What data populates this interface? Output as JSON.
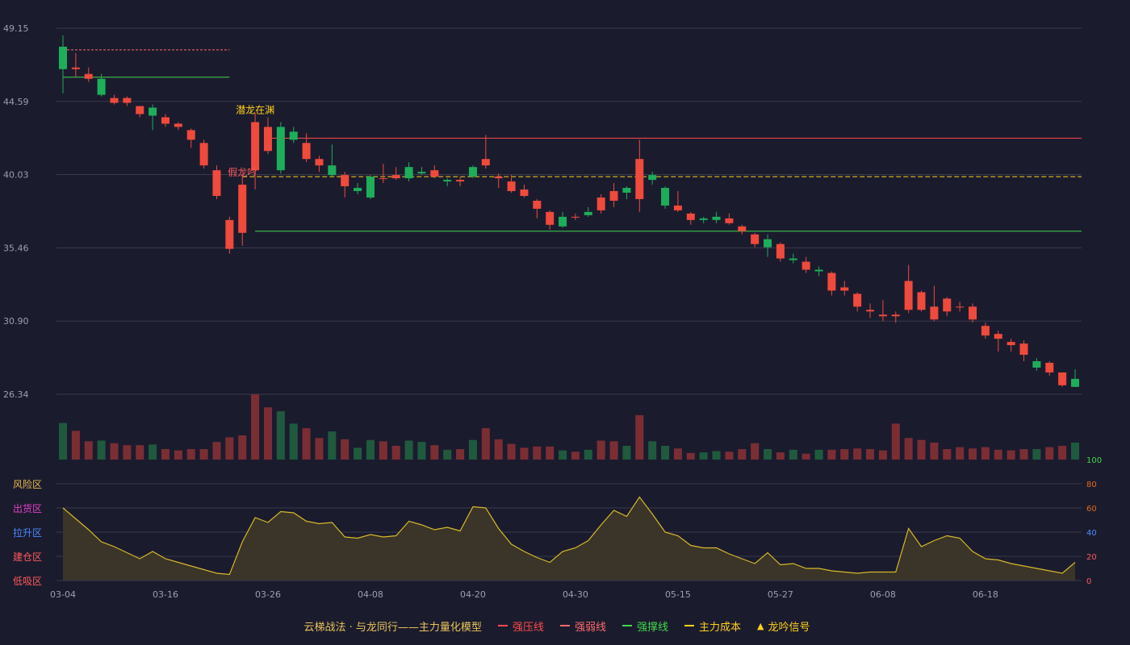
{
  "chart_data": {
    "type": "candlestick",
    "price_axis": {
      "ticks": [
        "49.15",
        "44.59",
        "40.03",
        "35.46",
        "30.90",
        "26.34"
      ],
      "min": 26.34,
      "max": 49.15
    },
    "x_ticks": [
      {
        "i": 0,
        "label": "03-04"
      },
      {
        "i": 8,
        "label": "03-16"
      },
      {
        "i": 16,
        "label": "03-26"
      },
      {
        "i": 24,
        "label": "04-08"
      },
      {
        "i": 32,
        "label": "04-20"
      },
      {
        "i": 40,
        "label": "04-30"
      },
      {
        "i": 48,
        "label": "05-15"
      },
      {
        "i": 56,
        "label": "05-27"
      },
      {
        "i": 64,
        "label": "06-08"
      },
      {
        "i": 72,
        "label": "06-18"
      }
    ],
    "candles": [
      [
        48.0,
        46.6,
        48.7,
        45.1
      ],
      [
        46.6,
        46.7,
        47.6,
        46.1
      ],
      [
        46.0,
        46.3,
        46.7,
        45.8
      ],
      [
        46.0,
        45.0,
        46.3,
        44.9
      ],
      [
        44.5,
        44.8,
        45.0,
        44.4
      ],
      [
        44.5,
        44.8,
        44.9,
        44.3
      ],
      [
        43.8,
        44.3,
        44.3,
        43.6
      ],
      [
        44.2,
        43.7,
        44.4,
        42.8
      ],
      [
        43.2,
        43.6,
        43.8,
        43.0
      ],
      [
        43.0,
        43.2,
        43.3,
        42.8
      ],
      [
        42.2,
        42.8,
        42.9,
        41.7
      ],
      [
        40.6,
        42.0,
        42.2,
        40.4
      ],
      [
        38.7,
        40.3,
        40.6,
        38.5
      ],
      [
        35.4,
        37.2,
        37.4,
        35.1
      ],
      [
        36.4,
        39.4,
        39.9,
        35.6
      ],
      [
        40.3,
        43.3,
        43.9,
        39.1
      ],
      [
        41.5,
        43.0,
        43.6,
        41.3
      ],
      [
        43.0,
        40.3,
        43.3,
        40.1
      ],
      [
        42.7,
        42.2,
        43.0,
        42.0
      ],
      [
        41.0,
        42.0,
        42.6,
        40.8
      ],
      [
        40.6,
        41.0,
        41.2,
        40.2
      ],
      [
        40.6,
        40.0,
        41.9,
        39.9
      ],
      [
        39.3,
        40.0,
        40.2,
        38.6
      ],
      [
        39.2,
        39.0,
        39.5,
        38.8
      ],
      [
        39.9,
        38.6,
        40.0,
        38.5
      ],
      [
        39.8,
        39.8,
        40.7,
        39.5
      ],
      [
        39.8,
        40.0,
        40.5,
        39.7
      ],
      [
        40.5,
        39.8,
        40.8,
        39.6
      ],
      [
        40.2,
        40.1,
        40.5,
        40.0
      ],
      [
        39.9,
        40.3,
        40.6,
        39.8
      ],
      [
        39.7,
        39.6,
        39.8,
        39.3
      ],
      [
        39.6,
        39.7,
        39.9,
        39.3
      ],
      [
        40.5,
        39.9,
        40.6,
        39.8
      ],
      [
        40.6,
        41.0,
        42.5,
        40.4
      ],
      [
        39.8,
        39.9,
        40.1,
        39.2
      ],
      [
        39.0,
        39.6,
        40.0,
        38.9
      ],
      [
        38.7,
        39.1,
        39.4,
        38.6
      ],
      [
        37.9,
        38.4,
        38.5,
        37.3
      ],
      [
        36.9,
        37.7,
        37.8,
        36.6
      ],
      [
        37.4,
        36.8,
        37.7,
        36.7
      ],
      [
        37.4,
        37.4,
        37.6,
        37.2
      ],
      [
        37.7,
        37.5,
        38.0,
        37.4
      ],
      [
        37.8,
        38.6,
        38.8,
        37.6
      ],
      [
        38.4,
        39.0,
        39.5,
        38.0
      ],
      [
        39.2,
        38.9,
        39.3,
        38.5
      ],
      [
        38.5,
        41.0,
        42.2,
        37.7
      ],
      [
        40.0,
        39.7,
        40.2,
        39.4
      ],
      [
        39.2,
        38.1,
        39.3,
        37.9
      ],
      [
        37.8,
        38.1,
        39.0,
        37.7
      ],
      [
        37.2,
        37.6,
        37.7,
        36.9
      ],
      [
        37.3,
        37.2,
        37.4,
        37.0
      ],
      [
        37.4,
        37.2,
        37.7,
        37.0
      ],
      [
        37.0,
        37.3,
        37.6,
        36.9
      ],
      [
        36.5,
        36.8,
        36.9,
        36.3
      ],
      [
        35.7,
        36.3,
        36.4,
        35.5
      ],
      [
        36.0,
        35.5,
        36.3,
        34.9
      ],
      [
        34.8,
        35.7,
        35.8,
        34.6
      ],
      [
        34.8,
        34.7,
        35.1,
        34.5
      ],
      [
        34.1,
        34.6,
        34.9,
        33.9
      ],
      [
        34.1,
        34.0,
        34.3,
        33.7
      ],
      [
        32.8,
        33.9,
        34.0,
        32.5
      ],
      [
        32.8,
        33.0,
        33.4,
        32.5
      ],
      [
        31.8,
        32.6,
        32.7,
        31.5
      ],
      [
        31.5,
        31.6,
        32.0,
        31.1
      ],
      [
        31.2,
        31.3,
        32.2,
        30.9
      ],
      [
        31.2,
        31.3,
        31.5,
        30.8
      ],
      [
        31.6,
        33.4,
        34.4,
        31.4
      ],
      [
        31.6,
        32.7,
        32.8,
        31.5
      ],
      [
        31.0,
        31.8,
        33.1,
        30.9
      ],
      [
        31.5,
        32.3,
        32.4,
        31.2
      ],
      [
        31.8,
        31.8,
        32.1,
        31.5
      ],
      [
        31.0,
        31.8,
        32.0,
        30.8
      ],
      [
        30.0,
        30.6,
        30.8,
        29.8
      ],
      [
        29.8,
        30.1,
        30.3,
        29.0
      ],
      [
        29.4,
        29.6,
        29.8,
        29.0
      ],
      [
        28.8,
        29.5,
        29.7,
        28.4
      ],
      [
        28.4,
        28.0,
        28.6,
        27.8
      ],
      [
        27.7,
        28.3,
        28.4,
        27.5
      ],
      [
        26.9,
        27.7,
        27.7,
        26.8
      ],
      [
        27.3,
        26.8,
        27.9,
        26.8
      ]
    ],
    "volumes": [
      56,
      44,
      28,
      29,
      25,
      22,
      22,
      23,
      16,
      14,
      16,
      16,
      27,
      34,
      37,
      100,
      80,
      74,
      55,
      48,
      33,
      43,
      31,
      18,
      30,
      28,
      21,
      29,
      27,
      22,
      15,
      16,
      30,
      48,
      31,
      24,
      18,
      20,
      20,
      14,
      12,
      15,
      29,
      28,
      21,
      68,
      28,
      21,
      17,
      10,
      11,
      13,
      12,
      16,
      25,
      16,
      11,
      15,
      9,
      15,
      15,
      16,
      17,
      16,
      14,
      55,
      33,
      30,
      26,
      16,
      19,
      17,
      19,
      15,
      14,
      16,
      16,
      19,
      21,
      26
    ],
    "indicator": {
      "y_ticks": [
        "100",
        "80",
        "60",
        "40",
        "20",
        "0"
      ],
      "zones": [
        "风险区",
        "出货区",
        "拉升区",
        "建仓区",
        "低吸区"
      ],
      "zone_colors": [
        "#e8b84a",
        "#e040c8",
        "#4a8cff",
        "#ff5a5a",
        "#ff5a5a"
      ],
      "values": [
        60,
        51,
        42,
        32,
        28,
        23,
        18,
        24,
        18,
        15,
        12,
        9,
        6,
        5,
        32,
        52,
        48,
        57,
        56,
        49,
        47,
        48,
        36,
        35,
        38,
        36,
        37,
        49,
        46,
        42,
        44,
        41,
        61,
        60,
        43,
        30,
        24,
        19,
        15,
        24,
        27,
        33,
        46,
        58,
        53,
        69,
        55,
        40,
        37,
        29,
        27,
        27,
        22,
        18,
        14,
        23,
        13,
        14,
        10,
        10,
        8,
        7,
        6,
        7,
        7,
        7,
        43,
        28,
        33,
        37,
        35,
        24,
        18,
        17,
        14,
        12,
        10,
        8,
        6,
        15
      ]
    },
    "lines": {
      "strong_pressure": {
        "label": "强压线",
        "value": 42.3,
        "from": 16,
        "to": 80,
        "color": "#ff4a4a"
      },
      "weak_pressure": {
        "label": "强弱线",
        "value": 47.8,
        "from": 0,
        "to": 13,
        "color": "#ff6a6a"
      },
      "support_1": {
        "label": "强撑线",
        "value": 46.1,
        "from": 0,
        "to": 13,
        "color": "#3fd84a"
      },
      "support_2": {
        "label": "强撑线",
        "value": 36.5,
        "from": 15,
        "to": 80,
        "color": "#3fd84a"
      },
      "main_cost": {
        "label": "主力成本",
        "value": 39.9,
        "from": 14,
        "to": 80,
        "color": "#ffd21a"
      }
    },
    "annotations": [
      {
        "text": "潜龙在渊",
        "i": 15,
        "price": 43.9,
        "color": "#ffd21a"
      },
      {
        "text": "假龙吟",
        "i": 14,
        "price": 40.0,
        "color": "#ff5a5a"
      }
    ],
    "legend": {
      "title": "云梯战法 · 与龙同行——主力量化模型",
      "items": [
        {
          "label": "强压线",
          "color": "#ff4a4a",
          "style": "solid"
        },
        {
          "label": "强弱线",
          "color": "#ff6a6a",
          "style": "dashed"
        },
        {
          "label": "强撑线",
          "color": "#3fd84a",
          "style": "solid"
        },
        {
          "label": "主力成本",
          "color": "#ffd21a",
          "style": "dashed"
        },
        {
          "label": "龙吟信号",
          "color": "#ffd21a",
          "style": "triangle"
        }
      ]
    },
    "colors": {
      "up": "#ef4a3c",
      "down": "#1eae5a",
      "grid": "#3a3a4c",
      "axis_text": "#9aa0b0",
      "bg": "#1b1b2e"
    }
  }
}
